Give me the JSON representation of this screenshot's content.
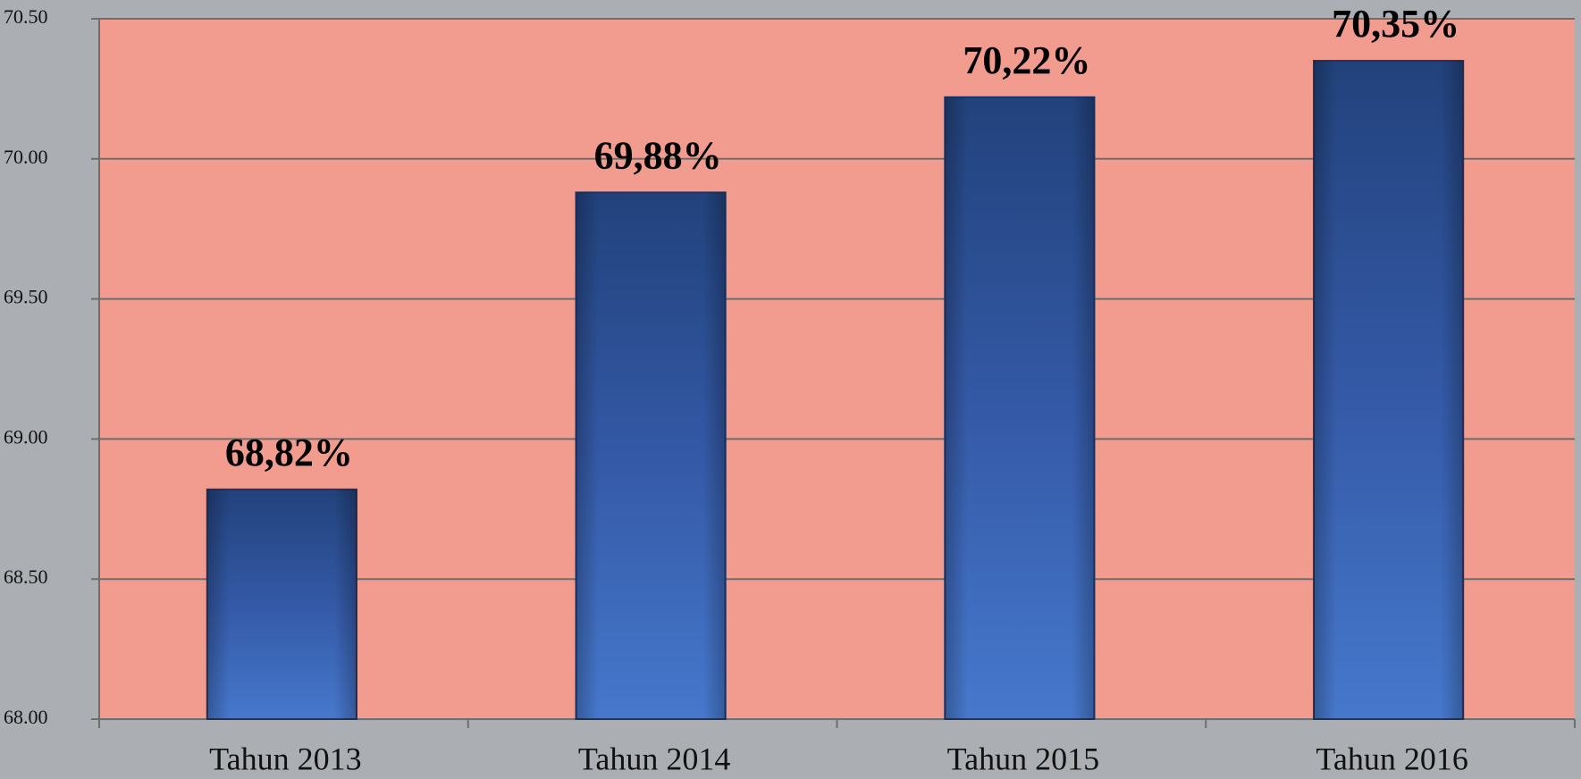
{
  "chart_data": {
    "type": "bar",
    "categories": [
      "Tahun 2013",
      "Tahun 2014",
      "Tahun 2015",
      "Tahun 2016"
    ],
    "values": [
      68.82,
      69.88,
      70.22,
      70.35
    ],
    "value_labels": [
      "68,82%",
      "69,88%",
      "70,22%",
      "70,35%"
    ],
    "color": "#3560ad",
    "ylim": [
      68,
      70.5
    ],
    "yticks": [
      {
        "value": 68,
        "label": "68.00"
      },
      {
        "value": 68.5,
        "label": "68.50"
      },
      {
        "value": 69,
        "label": "69.00"
      },
      {
        "value": 69.5,
        "label": "69.50"
      },
      {
        "value": 70,
        "label": "70.00"
      },
      {
        "value": 70.5,
        "label": "70.50"
      }
    ],
    "grid": true
  }
}
